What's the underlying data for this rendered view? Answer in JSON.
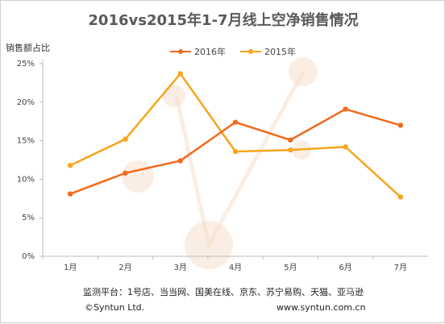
{
  "chart_data": {
    "type": "line",
    "title": "2016vs2015年1-7月线上空净销售情况",
    "ylabel": "销售额占比",
    "xlabel": "",
    "categories": [
      "1月",
      "2月",
      "3月",
      "4月",
      "5月",
      "6月",
      "7月"
    ],
    "y_ticks": [
      "0%",
      "5%",
      "10%",
      "15%",
      "20%",
      "25%"
    ],
    "ylim": [
      0,
      25
    ],
    "grid": false,
    "legend_position": "top-center",
    "series": [
      {
        "name": "2016年",
        "color": "#f26a1b",
        "values": [
          8.1,
          10.8,
          12.4,
          17.4,
          15.1,
          19.1,
          17.0
        ]
      },
      {
        "name": "2015年",
        "color": "#f7a51c",
        "values": [
          11.8,
          15.2,
          23.7,
          13.6,
          13.8,
          14.2,
          7.7
        ]
      }
    ]
  },
  "footer": {
    "source": "监测平台：1号店、当当网、国美在线、京东、苏宁易购、天猫、亚马逊",
    "copyright": "©Syntun Ltd.",
    "website": "www.syntun.com.cn"
  }
}
